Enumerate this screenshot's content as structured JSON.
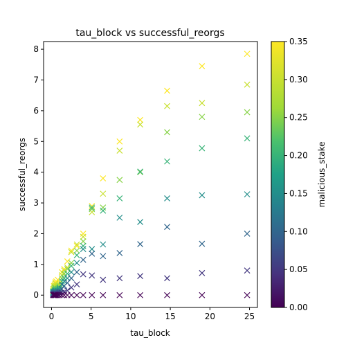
{
  "chart_data": {
    "type": "scatter",
    "title": "tau_block vs successful_reorgs",
    "xlabel": "tau_block",
    "ylabel": "successful_reorgs",
    "xlim": [
      -1.0,
      26.0
    ],
    "ylim": [
      -0.4,
      8.25
    ],
    "xticks": [
      0,
      5,
      10,
      15,
      20,
      25
    ],
    "yticks": [
      0,
      1,
      2,
      3,
      4,
      5,
      6,
      7,
      8
    ],
    "marker": "x",
    "colormap": "viridis",
    "colorbar": {
      "label": "malicious_stake",
      "min": 0.0,
      "max": 0.35,
      "ticks": [
        "0.00",
        "0.05",
        "0.10",
        "0.15",
        "0.20",
        "0.25",
        "0.30",
        "0.35"
      ]
    },
    "stake_levels": [
      0.0,
      0.05,
      0.1,
      0.15,
      0.2,
      0.25,
      0.3,
      0.35
    ],
    "x": [
      0.2,
      0.3,
      0.4,
      0.5,
      0.6,
      0.8,
      1.0,
      1.3,
      1.6,
      2.0,
      2.5,
      3.2,
      4.0,
      5.1,
      6.5,
      8.6,
      11.2,
      14.6,
      19.0,
      24.7
    ],
    "series": [
      {
        "stake": 0.35,
        "values": [
          0.2,
          0.3,
          0.35,
          0.42,
          0.45,
          0.5,
          0.4,
          0.75,
          0.85,
          1.1,
          1.45,
          1.6,
          2.0,
          2.9,
          3.8,
          5.0,
          5.7,
          6.65,
          7.45,
          7.85
        ]
      },
      {
        "stake": 0.3,
        "values": [
          0.15,
          0.25,
          0.3,
          0.38,
          0.3,
          0.3,
          0.35,
          0.65,
          0.8,
          0.9,
          1.4,
          1.65,
          1.9,
          2.7,
          3.3,
          4.7,
          5.55,
          6.15,
          6.25,
          6.85
        ]
      },
      {
        "stake": 0.25,
        "values": [
          0.12,
          0.2,
          0.25,
          0.25,
          0.2,
          0.25,
          0.3,
          0.55,
          0.7,
          0.85,
          1.05,
          1.45,
          1.75,
          2.8,
          2.85,
          3.75,
          4.0,
          5.3,
          5.8,
          5.95
        ]
      },
      {
        "stake": 0.2,
        "values": [
          0.1,
          0.12,
          0.15,
          0.2,
          0.15,
          0.2,
          0.25,
          0.45,
          0.55,
          0.7,
          0.95,
          1.3,
          1.6,
          2.85,
          2.75,
          3.15,
          4.02,
          4.35,
          4.78,
          5.1
        ]
      },
      {
        "stake": 0.15,
        "values": [
          0.08,
          0.1,
          0.12,
          0.15,
          0.12,
          0.15,
          0.2,
          0.35,
          0.45,
          0.55,
          0.75,
          1.05,
          1.5,
          1.5,
          1.65,
          2.52,
          2.38,
          3.15,
          3.25,
          3.28
        ]
      },
      {
        "stake": 0.1,
        "values": [
          0.05,
          0.06,
          0.08,
          0.1,
          0.08,
          0.1,
          0.12,
          0.2,
          0.3,
          0.4,
          0.55,
          0.75,
          1.15,
          1.35,
          1.27,
          1.37,
          1.66,
          2.22,
          1.67,
          2.0
        ]
      },
      {
        "stake": 0.05,
        "values": [
          0.02,
          0.03,
          0.04,
          0.05,
          0.04,
          0.05,
          0.06,
          0.08,
          0.1,
          0.15,
          0.25,
          0.35,
          0.68,
          0.64,
          0.5,
          0.55,
          0.62,
          0.55,
          0.72,
          0.8
        ]
      },
      {
        "stake": 0.0,
        "values": [
          0,
          0,
          0,
          0,
          0,
          0,
          0,
          0,
          0,
          0,
          0,
          0,
          0,
          0,
          0,
          0,
          0,
          0,
          0,
          0
        ]
      }
    ]
  }
}
